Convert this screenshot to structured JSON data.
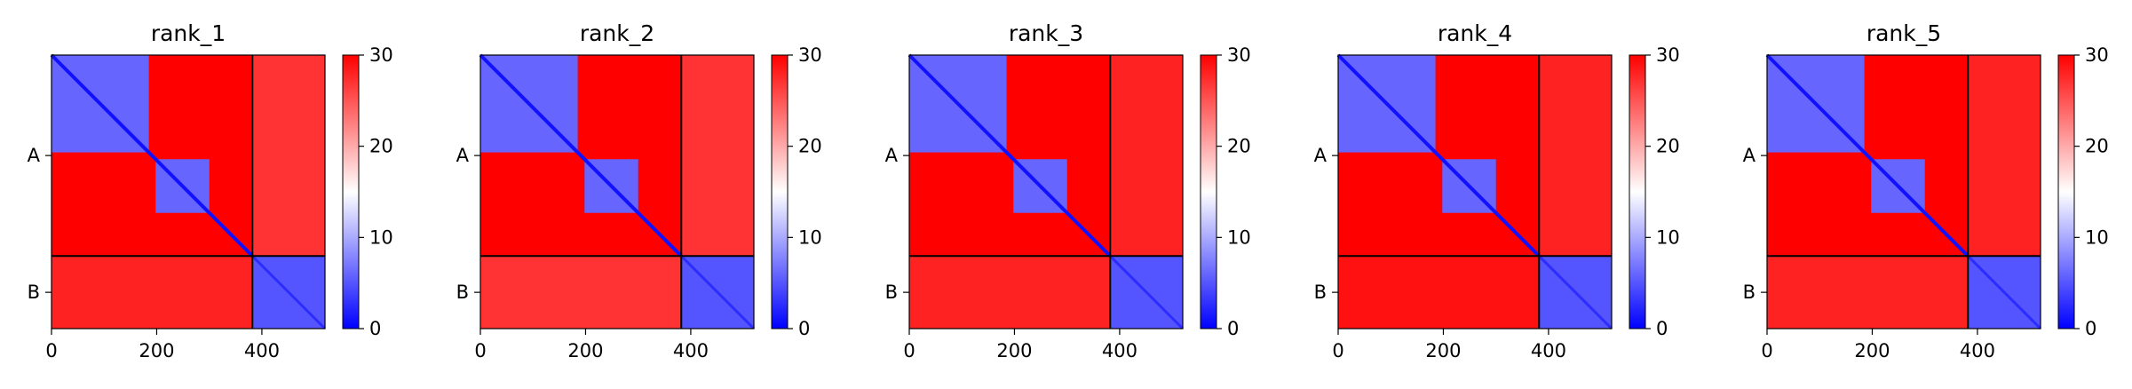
{
  "chart_data": [
    {
      "type": "heatmap",
      "title": "rank_1",
      "x_ticks": [
        0,
        200,
        400
      ],
      "y_tick_labels": [
        "A",
        "B"
      ],
      "xlim": [
        0,
        520
      ],
      "chain_boundary": 382,
      "colorbar": {
        "ticks": [
          0,
          10,
          20,
          30
        ],
        "range": [
          0,
          30
        ],
        "colormap": "bwr"
      },
      "blocks": [
        {
          "region": "A-N-domain (0-185) x A-N-domain",
          "value": 6
        },
        {
          "region": "A-C-domain (200-300) x A-C-domain",
          "value": 6
        },
        {
          "region": "A x A off-diagonal",
          "value": 30
        },
        {
          "region": "A x B",
          "value": 27
        },
        {
          "region": "B x A",
          "value": 28
        },
        {
          "region": "B x B",
          "value": 5
        },
        {
          "region": "diagonal",
          "value": 1
        }
      ]
    },
    {
      "type": "heatmap",
      "title": "rank_2",
      "x_ticks": [
        0,
        200,
        400
      ],
      "y_tick_labels": [
        "A",
        "B"
      ],
      "xlim": [
        0,
        520
      ],
      "chain_boundary": 382,
      "colorbar": {
        "ticks": [
          0,
          10,
          20,
          30
        ],
        "range": [
          0,
          30
        ],
        "colormap": "bwr"
      },
      "blocks": [
        {
          "region": "A-N-domain (0-185) x A-N-domain",
          "value": 6
        },
        {
          "region": "A-C-domain (200-300) x A-C-domain",
          "value": 6
        },
        {
          "region": "A x A off-diagonal",
          "value": 30
        },
        {
          "region": "A x B",
          "value": 27
        },
        {
          "region": "B x A",
          "value": 27
        },
        {
          "region": "B x B",
          "value": 5
        },
        {
          "region": "diagonal",
          "value": 1
        }
      ]
    },
    {
      "type": "heatmap",
      "title": "rank_3",
      "x_ticks": [
        0,
        200,
        400
      ],
      "y_tick_labels": [
        "A",
        "B"
      ],
      "xlim": [
        0,
        520
      ],
      "chain_boundary": 382,
      "colorbar": {
        "ticks": [
          0,
          10,
          20,
          30
        ],
        "range": [
          0,
          30
        ],
        "colormap": "bwr"
      },
      "blocks": [
        {
          "region": "A-N-domain (0-185) x A-N-domain",
          "value": 6
        },
        {
          "region": "A-C-domain (200-300) x A-C-domain",
          "value": 6
        },
        {
          "region": "A x A off-diagonal",
          "value": 30
        },
        {
          "region": "A x B",
          "value": 28
        },
        {
          "region": "B x A",
          "value": 28
        },
        {
          "region": "B x B",
          "value": 5
        },
        {
          "region": "diagonal",
          "value": 1
        }
      ]
    },
    {
      "type": "heatmap",
      "title": "rank_4",
      "x_ticks": [
        0,
        200,
        400
      ],
      "y_tick_labels": [
        "A",
        "B"
      ],
      "xlim": [
        0,
        520
      ],
      "chain_boundary": 382,
      "colorbar": {
        "ticks": [
          0,
          10,
          20,
          30
        ],
        "range": [
          0,
          30
        ],
        "colormap": "bwr"
      },
      "blocks": [
        {
          "region": "A-N-domain (0-185) x A-N-domain",
          "value": 6
        },
        {
          "region": "A-C-domain (200-300) x A-C-domain",
          "value": 6
        },
        {
          "region": "A x A off-diagonal",
          "value": 30
        },
        {
          "region": "A x B",
          "value": 28
        },
        {
          "region": "B x A",
          "value": 29
        },
        {
          "region": "B x B",
          "value": 5
        },
        {
          "region": "diagonal",
          "value": 1
        }
      ]
    },
    {
      "type": "heatmap",
      "title": "rank_5",
      "x_ticks": [
        0,
        200,
        400
      ],
      "y_tick_labels": [
        "A",
        "B"
      ],
      "xlim": [
        0,
        520
      ],
      "chain_boundary": 382,
      "colorbar": {
        "ticks": [
          0,
          10,
          20,
          30
        ],
        "range": [
          0,
          30
        ],
        "colormap": "bwr"
      },
      "blocks": [
        {
          "region": "A-N-domain (0-185) x A-N-domain",
          "value": 6
        },
        {
          "region": "A-C-domain (200-300) x A-C-domain",
          "value": 6
        },
        {
          "region": "A x A off-diagonal",
          "value": 30
        },
        {
          "region": "A x B",
          "value": 28
        },
        {
          "region": "B x A",
          "value": 28
        },
        {
          "region": "B x B",
          "value": 5
        },
        {
          "region": "diagonal",
          "value": 1
        }
      ]
    }
  ],
  "colors": {
    "low": "#0000ff",
    "mid": "#ffffff",
    "high": "#ff0000",
    "axis": "#000000"
  }
}
